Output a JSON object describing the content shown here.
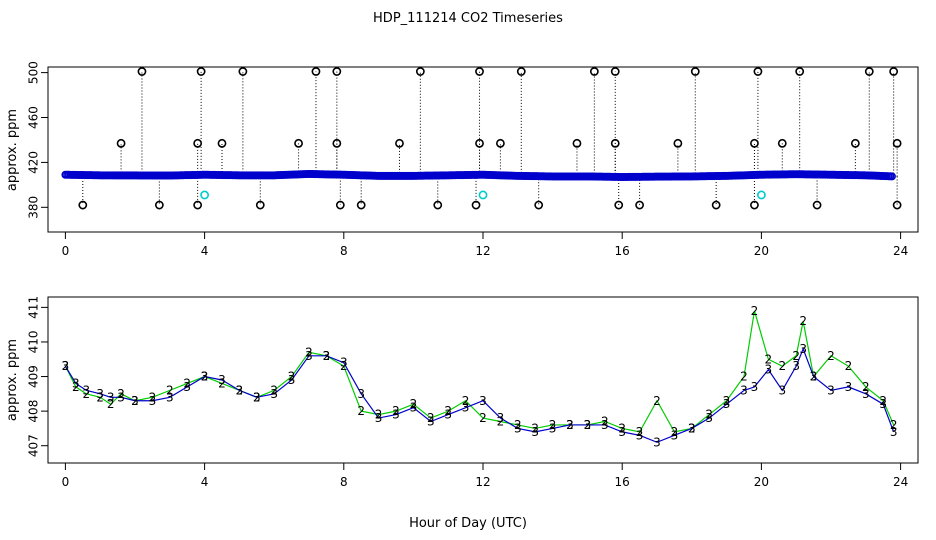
{
  "title": "HDP_111214  CO2 Timeseries",
  "xlabel": "Hour of Day (UTC)",
  "colors": {
    "series2": "#00cc00",
    "series3": "#0000cc",
    "flag": "#00cccc",
    "outlier": "#000000",
    "axis": "#000000"
  },
  "chart_data": [
    {
      "type": "scatter",
      "panel": "top",
      "ylabel": "approx. ppm",
      "xlim": [
        -0.5,
        24.5
      ],
      "ylim": [
        358,
        505
      ],
      "xticks": [
        "0",
        "4",
        "8",
        "12",
        "16",
        "20",
        "24"
      ],
      "yticks": [
        "380",
        "420",
        "460",
        "500"
      ],
      "baseline": {
        "x": [
          0,
          1,
          2,
          3,
          4,
          5,
          6,
          7,
          8,
          9,
          10,
          11,
          12,
          13,
          14,
          15,
          16,
          17,
          18,
          19,
          20,
          21,
          22,
          23,
          23.8
        ],
        "y": [
          409,
          408.5,
          408.4,
          408.3,
          409,
          408.5,
          408.5,
          409.7,
          409,
          408,
          408,
          408.5,
          409,
          408,
          407.5,
          407.5,
          407,
          407.3,
          407.5,
          408,
          409,
          409.5,
          409,
          408.5,
          407.5
        ]
      },
      "spikes_high": [
        {
          "x": 2.2,
          "y": 501
        },
        {
          "x": 3.9,
          "y": 501
        },
        {
          "x": 5.1,
          "y": 501
        },
        {
          "x": 7.2,
          "y": 501
        },
        {
          "x": 7.8,
          "y": 501
        },
        {
          "x": 10.2,
          "y": 501
        },
        {
          "x": 11.9,
          "y": 501
        },
        {
          "x": 13.1,
          "y": 501
        },
        {
          "x": 15.2,
          "y": 501
        },
        {
          "x": 15.8,
          "y": 501
        },
        {
          "x": 18.1,
          "y": 501
        },
        {
          "x": 19.9,
          "y": 501
        },
        {
          "x": 21.1,
          "y": 501
        },
        {
          "x": 23.1,
          "y": 501
        },
        {
          "x": 23.8,
          "y": 501
        },
        {
          "x": 1.6,
          "y": 437
        },
        {
          "x": 3.8,
          "y": 437
        },
        {
          "x": 4.5,
          "y": 437
        },
        {
          "x": 6.7,
          "y": 437
        },
        {
          "x": 7.8,
          "y": 437
        },
        {
          "x": 9.6,
          "y": 437
        },
        {
          "x": 11.9,
          "y": 437
        },
        {
          "x": 12.5,
          "y": 437
        },
        {
          "x": 14.7,
          "y": 437
        },
        {
          "x": 15.8,
          "y": 437
        },
        {
          "x": 17.6,
          "y": 437
        },
        {
          "x": 19.8,
          "y": 437
        },
        {
          "x": 20.6,
          "y": 437
        },
        {
          "x": 22.7,
          "y": 437
        },
        {
          "x": 23.9,
          "y": 437
        }
      ],
      "spikes_low": [
        {
          "x": 0.5,
          "y": 382
        },
        {
          "x": 2.7,
          "y": 382
        },
        {
          "x": 3.8,
          "y": 382
        },
        {
          "x": 5.6,
          "y": 382
        },
        {
          "x": 7.9,
          "y": 382
        },
        {
          "x": 8.5,
          "y": 382
        },
        {
          "x": 10.7,
          "y": 382
        },
        {
          "x": 11.8,
          "y": 382
        },
        {
          "x": 13.6,
          "y": 382
        },
        {
          "x": 15.9,
          "y": 382
        },
        {
          "x": 16.5,
          "y": 382
        },
        {
          "x": 18.7,
          "y": 382
        },
        {
          "x": 19.8,
          "y": 382
        },
        {
          "x": 21.6,
          "y": 382
        },
        {
          "x": 23.9,
          "y": 382
        }
      ],
      "flags": [
        {
          "x": 4.0,
          "y": 391
        },
        {
          "x": 12.0,
          "y": 391
        },
        {
          "x": 20.0,
          "y": 391
        }
      ]
    },
    {
      "type": "line",
      "panel": "bottom",
      "ylabel": "approx. ppm",
      "xlim": [
        -0.5,
        24.5
      ],
      "ylim": [
        406.5,
        411.3
      ],
      "xticks": [
        "0",
        "4",
        "8",
        "12",
        "16",
        "20",
        "24"
      ],
      "yticks": [
        "407",
        "408",
        "409",
        "410",
        "411"
      ],
      "series": [
        {
          "name": "2",
          "marker": "2",
          "x": [
            0,
            0.3,
            0.6,
            1,
            1.3,
            1.6,
            2,
            2.5,
            3,
            3.5,
            4,
            4.5,
            5,
            5.5,
            6,
            6.5,
            7,
            7.5,
            8,
            8.5,
            9,
            9.5,
            10,
            10.5,
            11,
            11.5,
            12,
            12.5,
            13,
            13.5,
            14,
            14.5,
            15,
            15.5,
            16,
            16.5,
            17,
            17.5,
            18,
            18.5,
            19,
            19.5,
            19.8,
            20.2,
            20.6,
            21,
            21.2,
            21.5,
            22,
            22.5,
            23,
            23.5,
            23.8
          ],
          "y": [
            409.3,
            408.7,
            408.5,
            408.4,
            408.2,
            408.5,
            408.3,
            408.4,
            408.6,
            408.8,
            409.0,
            408.8,
            408.6,
            408.4,
            408.6,
            409.0,
            409.7,
            409.6,
            409.3,
            408.0,
            407.9,
            408.0,
            408.2,
            407.8,
            408.0,
            408.3,
            407.8,
            407.7,
            407.6,
            407.5,
            407.6,
            407.6,
            407.6,
            407.7,
            407.5,
            407.4,
            408.3,
            407.4,
            407.5,
            407.9,
            408.3,
            409.0,
            410.9,
            409.5,
            409.3,
            409.6,
            410.6,
            409.0,
            409.6,
            409.3,
            408.7,
            408.3,
            407.6
          ]
        },
        {
          "name": "3",
          "marker": "3",
          "x": [
            0,
            0.3,
            0.6,
            1,
            1.3,
            1.6,
            2,
            2.5,
            3,
            3.5,
            4,
            4.5,
            5,
            5.5,
            6,
            6.5,
            7,
            7.5,
            8,
            8.5,
            9,
            9.5,
            10,
            10.5,
            11,
            11.5,
            12,
            12.5,
            13,
            13.5,
            14,
            14.5,
            15,
            15.5,
            16,
            16.5,
            17,
            17.5,
            18,
            18.5,
            19,
            19.5,
            19.8,
            20.2,
            20.6,
            21,
            21.2,
            21.5,
            22,
            22.5,
            23,
            23.5,
            23.8
          ],
          "y": [
            409.3,
            408.8,
            408.6,
            408.5,
            408.4,
            408.4,
            408.3,
            408.3,
            408.4,
            408.7,
            409.0,
            408.9,
            408.6,
            408.4,
            408.5,
            408.9,
            409.6,
            409.6,
            409.4,
            408.5,
            407.8,
            407.9,
            408.1,
            407.7,
            407.9,
            408.1,
            408.3,
            407.8,
            407.5,
            407.4,
            407.5,
            407.6,
            407.6,
            407.6,
            407.4,
            407.3,
            407.1,
            407.3,
            407.5,
            407.8,
            408.2,
            408.6,
            408.7,
            409.2,
            408.6,
            409.3,
            409.8,
            409.0,
            408.6,
            408.7,
            408.5,
            408.2,
            407.4
          ]
        }
      ]
    }
  ]
}
